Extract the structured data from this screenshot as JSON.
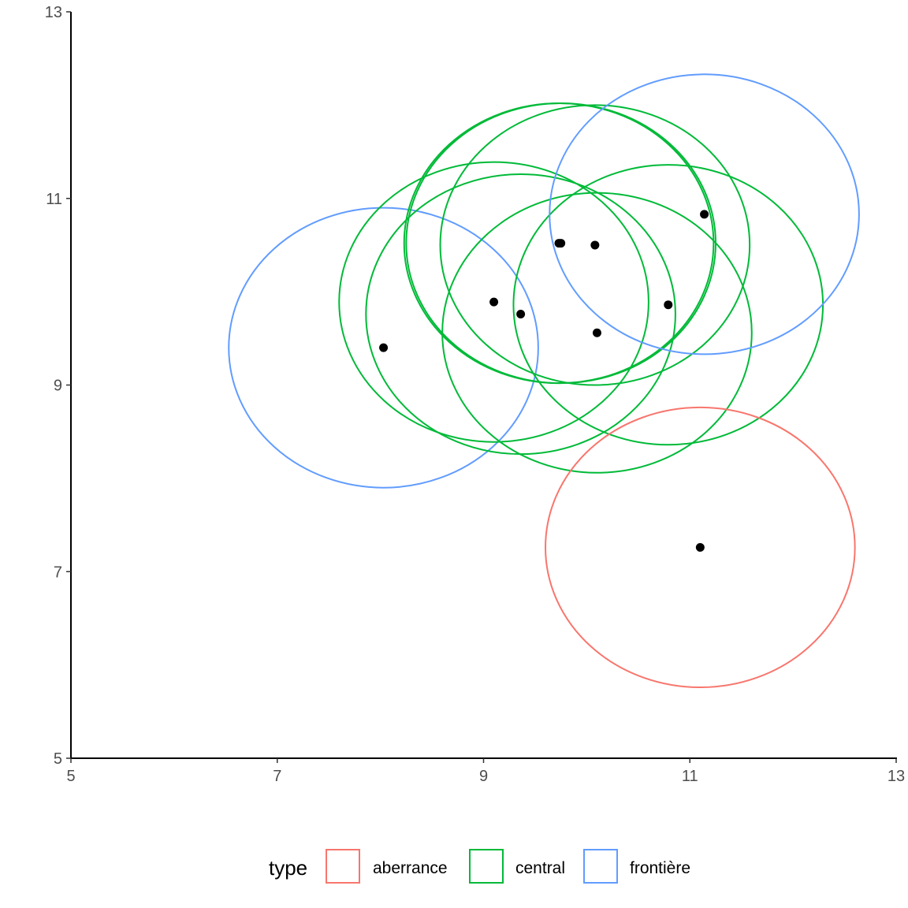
{
  "chart_data": {
    "type": "scatter",
    "xlim": [
      5,
      13
    ],
    "ylim": [
      5,
      13
    ],
    "x_ticks": [
      5,
      7,
      9,
      11,
      13
    ],
    "y_ticks": [
      5,
      7,
      9,
      11,
      13
    ],
    "x_tick_labels": [
      "5",
      "7",
      "9",
      "11",
      "13"
    ],
    "y_tick_labels": [
      "5",
      "7",
      "9",
      "11",
      "13"
    ],
    "xlabel": "",
    "ylabel": "",
    "grid": false,
    "circle_radius": 1.5,
    "point_color": "#000000",
    "points": [
      {
        "x": 8.03,
        "y": 9.4,
        "type": "frontière"
      },
      {
        "x": 9.1,
        "y": 9.89,
        "type": "central"
      },
      {
        "x": 9.36,
        "y": 9.76,
        "type": "central"
      },
      {
        "x": 9.73,
        "y": 10.52,
        "type": "central"
      },
      {
        "x": 9.75,
        "y": 10.52,
        "type": "central"
      },
      {
        "x": 10.08,
        "y": 10.5,
        "type": "central"
      },
      {
        "x": 10.1,
        "y": 9.56,
        "type": "central"
      },
      {
        "x": 10.79,
        "y": 9.86,
        "type": "central"
      },
      {
        "x": 11.14,
        "y": 10.83,
        "type": "frontière"
      },
      {
        "x": 11.1,
        "y": 7.26,
        "type": "aberrance"
      }
    ],
    "legend": {
      "title": "type",
      "position": "bottom",
      "entries": [
        {
          "label": "aberrance",
          "color": "#F8766D"
        },
        {
          "label": "central",
          "color": "#00BA38"
        },
        {
          "label": "frontière",
          "color": "#619CFF"
        }
      ]
    }
  }
}
